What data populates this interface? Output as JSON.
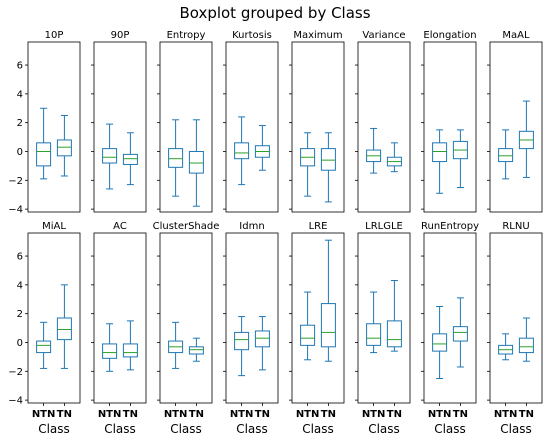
{
  "chart_data": {
    "type": "boxplot",
    "title": "Boxplot grouped by Class",
    "categories": [
      "NTN",
      "TN"
    ],
    "xlabel": "Class",
    "ylim": [
      -4.2,
      7.6
    ],
    "yticks": [
      -4,
      -2,
      0,
      2,
      4,
      6
    ],
    "grid": false,
    "colors": {
      "box": "#1f77b4",
      "median": "#2ca02c"
    },
    "panels": [
      {
        "name": "10P",
        "boxes": [
          {
            "whislo": -1.9,
            "q1": -1.0,
            "med": 0.0,
            "q3": 0.6,
            "whishi": 3.0
          },
          {
            "whislo": -1.7,
            "q1": -0.3,
            "med": 0.3,
            "q3": 0.8,
            "whishi": 2.5
          }
        ]
      },
      {
        "name": "90P",
        "boxes": [
          {
            "whislo": -2.6,
            "q1": -0.8,
            "med": -0.4,
            "q3": 0.2,
            "whishi": 1.9
          },
          {
            "whislo": -2.3,
            "q1": -0.9,
            "med": -0.5,
            "q3": -0.2,
            "whishi": 1.3
          }
        ]
      },
      {
        "name": "Entropy",
        "boxes": [
          {
            "whislo": -3.1,
            "q1": -1.1,
            "med": -0.5,
            "q3": 0.2,
            "whishi": 2.2
          },
          {
            "whislo": -3.8,
            "q1": -1.5,
            "med": -0.8,
            "q3": 0.0,
            "whishi": 2.2
          }
        ]
      },
      {
        "name": "Kurtosis",
        "boxes": [
          {
            "whislo": -2.3,
            "q1": -0.5,
            "med": -0.1,
            "q3": 0.6,
            "whishi": 2.4
          },
          {
            "whislo": -1.3,
            "q1": -0.4,
            "med": 0.0,
            "q3": 0.4,
            "whishi": 1.8
          }
        ]
      },
      {
        "name": "Maximum",
        "boxes": [
          {
            "whislo": -3.1,
            "q1": -1.0,
            "med": -0.4,
            "q3": 0.2,
            "whishi": 1.3
          },
          {
            "whislo": -3.5,
            "q1": -1.3,
            "med": -0.6,
            "q3": 0.2,
            "whishi": 1.3
          }
        ]
      },
      {
        "name": "Variance",
        "boxes": [
          {
            "whislo": -1.5,
            "q1": -0.7,
            "med": -0.3,
            "q3": 0.1,
            "whishi": 1.6
          },
          {
            "whislo": -1.4,
            "q1": -1.0,
            "med": -0.7,
            "q3": -0.4,
            "whishi": 0.6
          }
        ]
      },
      {
        "name": "Elongation",
        "boxes": [
          {
            "whislo": -2.9,
            "q1": -0.7,
            "med": 0.0,
            "q3": 0.6,
            "whishi": 1.5
          },
          {
            "whislo": -2.5,
            "q1": -0.5,
            "med": 0.1,
            "q3": 0.7,
            "whishi": 1.5
          }
        ]
      },
      {
        "name": "MaAL",
        "boxes": [
          {
            "whislo": -1.9,
            "q1": -0.7,
            "med": -0.3,
            "q3": 0.2,
            "whishi": 1.5
          },
          {
            "whislo": -1.8,
            "q1": 0.2,
            "med": 0.8,
            "q3": 1.4,
            "whishi": 3.5
          }
        ]
      },
      {
        "name": "MiAL",
        "boxes": [
          {
            "whislo": -1.8,
            "q1": -0.7,
            "med": -0.2,
            "q3": 0.1,
            "whishi": 1.4
          },
          {
            "whislo": -1.8,
            "q1": 0.2,
            "med": 0.9,
            "q3": 1.7,
            "whishi": 4.0
          }
        ]
      },
      {
        "name": "AC",
        "boxes": [
          {
            "whislo": -2.0,
            "q1": -1.1,
            "med": -0.7,
            "q3": -0.1,
            "whishi": 1.3
          },
          {
            "whislo": -1.9,
            "q1": -1.0,
            "med": -0.7,
            "q3": -0.1,
            "whishi": 1.5
          }
        ]
      },
      {
        "name": "ClusterShade",
        "boxes": [
          {
            "whislo": -1.8,
            "q1": -0.7,
            "med": -0.3,
            "q3": 0.1,
            "whishi": 1.4
          },
          {
            "whislo": -1.3,
            "q1": -0.8,
            "med": -0.5,
            "q3": -0.3,
            "whishi": 0.3
          }
        ]
      },
      {
        "name": "Idmn",
        "boxes": [
          {
            "whislo": -2.3,
            "q1": -0.5,
            "med": 0.2,
            "q3": 0.7,
            "whishi": 1.8
          },
          {
            "whislo": -1.9,
            "q1": -0.3,
            "med": 0.3,
            "q3": 0.8,
            "whishi": 1.8
          }
        ]
      },
      {
        "name": "LRE",
        "boxes": [
          {
            "whislo": -1.2,
            "q1": -0.2,
            "med": 0.3,
            "q3": 1.2,
            "whishi": 3.5
          },
          {
            "whislo": -1.3,
            "q1": -0.3,
            "med": 0.7,
            "q3": 2.7,
            "whishi": 7.1
          }
        ]
      },
      {
        "name": "LRLGLE",
        "boxes": [
          {
            "whislo": -0.7,
            "q1": -0.2,
            "med": 0.3,
            "q3": 1.3,
            "whishi": 3.5
          },
          {
            "whislo": -0.6,
            "q1": -0.3,
            "med": 0.2,
            "q3": 1.5,
            "whishi": 4.3
          }
        ]
      },
      {
        "name": "RunEntropy",
        "boxes": [
          {
            "whislo": -2.5,
            "q1": -0.6,
            "med": -0.1,
            "q3": 0.6,
            "whishi": 2.5
          },
          {
            "whislo": -1.7,
            "q1": 0.1,
            "med": 0.7,
            "q3": 1.1,
            "whishi": 3.1
          }
        ]
      },
      {
        "name": "RLNU",
        "boxes": [
          {
            "whislo": -1.2,
            "q1": -0.8,
            "med": -0.5,
            "q3": -0.2,
            "whishi": 0.6
          },
          {
            "whislo": -1.3,
            "q1": -0.7,
            "med": -0.3,
            "q3": 0.3,
            "whishi": 1.7
          }
        ]
      }
    ]
  }
}
